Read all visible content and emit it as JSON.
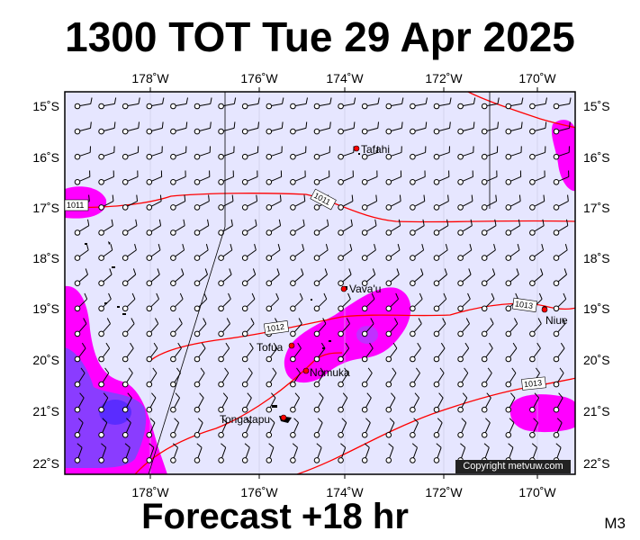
{
  "header": {
    "title": "1300 TOT Tue 29 Apr 2025"
  },
  "footer": {
    "forecast_label": "Forecast +18 hr",
    "model_label": "M3"
  },
  "map": {
    "lon_labels": [
      "178˚W",
      "176˚W",
      "174˚W",
      "172˚W",
      "170˚W"
    ],
    "lat_labels": [
      "15˚S",
      "16˚S",
      "17˚S",
      "18˚S",
      "19˚S",
      "20˚S",
      "21˚S",
      "22˚S"
    ],
    "isobar_labels": [
      "1011",
      "1011",
      "1012",
      "1013",
      "1013"
    ],
    "places": [
      "Tafahi",
      "Vava'u",
      "Niue",
      "Tofua",
      "Nomuka",
      "Tongatapu"
    ],
    "copyright": "Copyright metvuw.com",
    "colors": {
      "ocean": "#e6e6ff",
      "isobar": "#ff0000",
      "rain_light": "#ff00ff",
      "rain_heavy": "#8a3cff"
    }
  }
}
